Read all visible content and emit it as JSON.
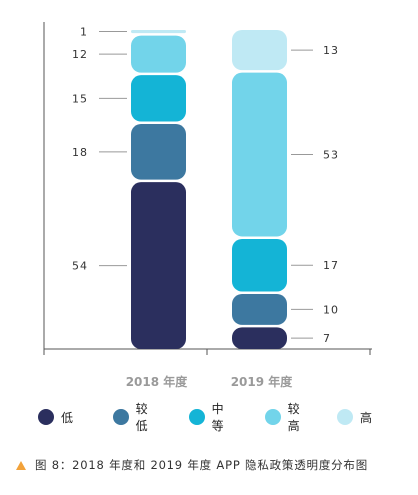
{
  "chart_data": {
    "type": "bar",
    "stacked": true,
    "categories": [
      "2018 年度",
      "2019 年度"
    ],
    "series": [
      {
        "name": "低",
        "values": [
          54,
          7
        ],
        "color": "#2b2f5e"
      },
      {
        "name": "较低",
        "values": [
          18,
          10
        ],
        "color": "#3d78a0"
      },
      {
        "name": "中等",
        "values": [
          15,
          17
        ],
        "color": "#14b4d6"
      },
      {
        "name": "较高",
        "values": [
          12,
          53
        ],
        "color": "#72d4ea"
      },
      {
        "name": "高",
        "values": [
          1,
          13
        ],
        "color": "#bfe9f4"
      }
    ],
    "legend_position": "bottom",
    "grid": false
  },
  "caption": {
    "icon": "triangle-icon",
    "text": "图 8：2018 年度和 2019 年度 APP 隐私政策透明度分布图",
    "icon_color": "#f2a23a"
  }
}
